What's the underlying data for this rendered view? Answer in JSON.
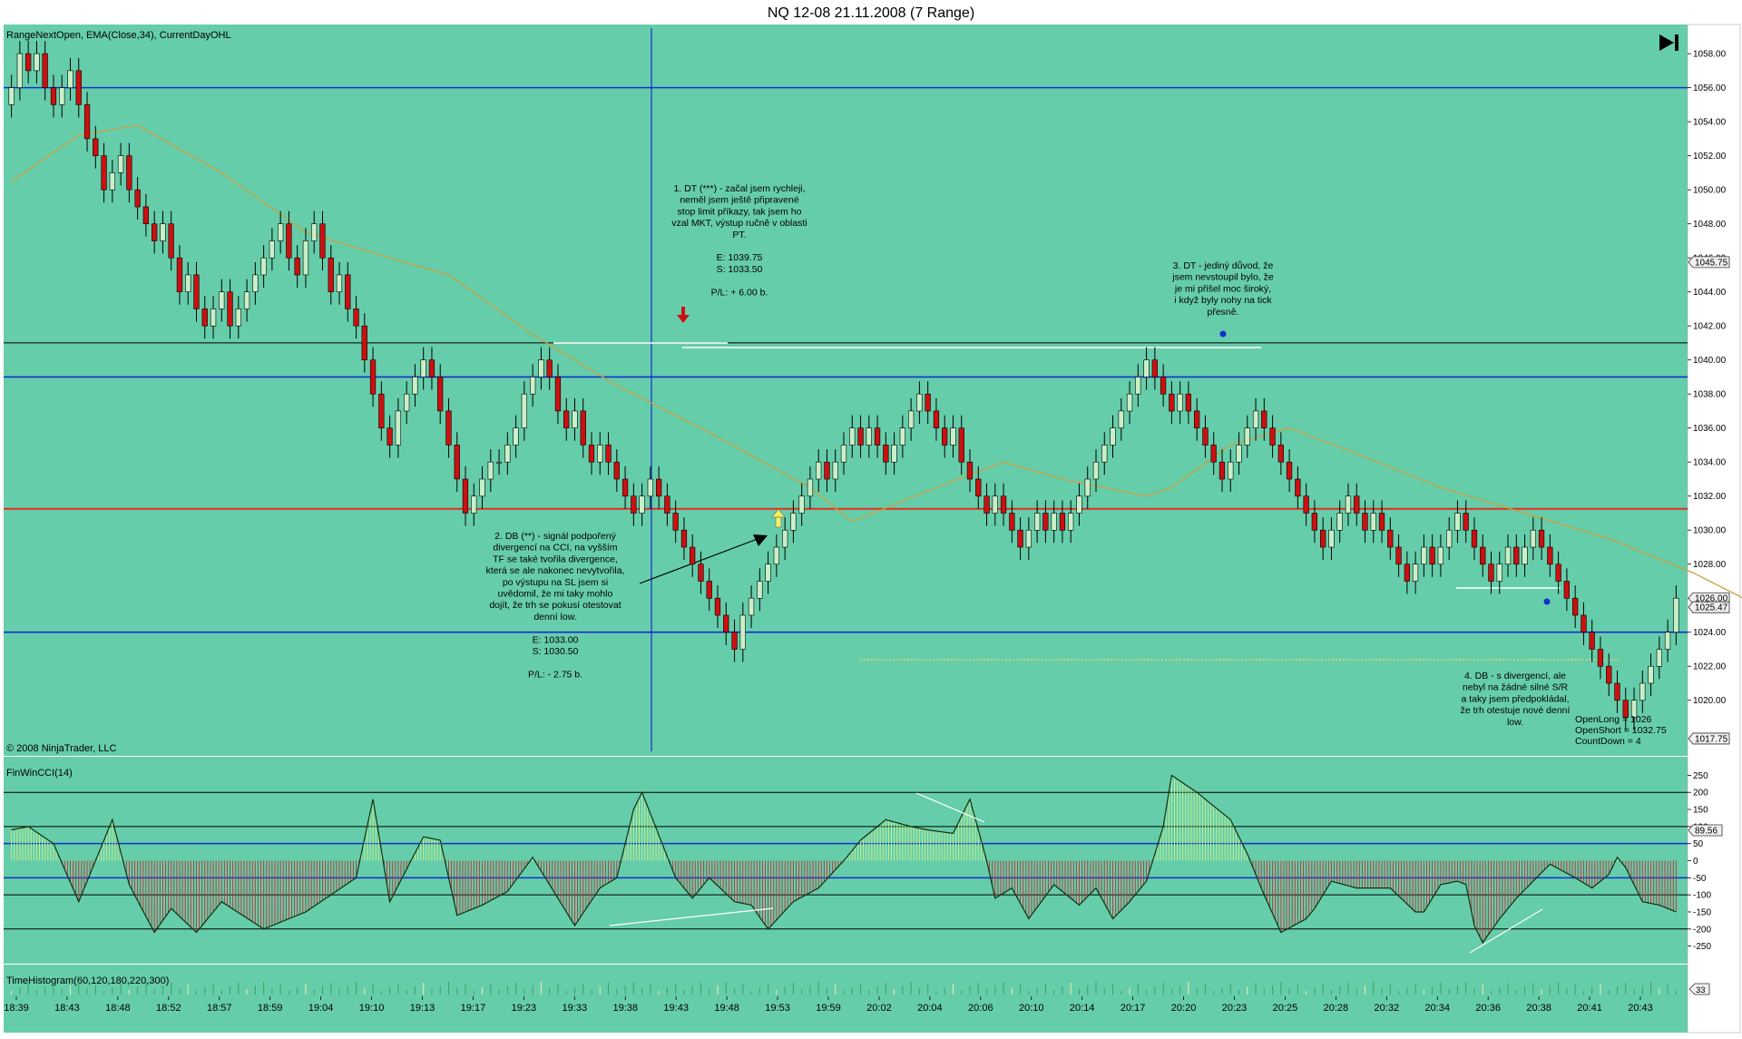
{
  "window_title": "NQ 12-08  21.11.2008 (7 Range)",
  "indicators_label": "RangeNextOpen, EMA(Close,34), CurrentDayOHL",
  "copyright": "© 2008 NinjaTrader, LLC",
  "cci_label": "FinWinCCI(14)",
  "hist_label": "TimeHistogram(60,120,180,220,300)",
  "colors": {
    "background": "#66CDAA",
    "up_candle": "#C8F0C8",
    "down_candle": "#CC1010",
    "ema": "#C8A040",
    "blue_level": "#1030D0",
    "red_level": "#E03020",
    "black_level": "#000000",
    "cci_positive": "#C0F090",
    "cci_negative": "#B04040"
  },
  "price_axis": {
    "ylim": [
      1017.0,
      1059.5
    ],
    "ticks": [
      "1058.00",
      "1056.00",
      "1054.00",
      "1052.00",
      "1050.00",
      "1048.00",
      "1046.00",
      "1044.00",
      "1042.00",
      "1040.00",
      "1038.00",
      "1036.00",
      "1034.00",
      "1032.00",
      "1030.00",
      "1028.00",
      "1026.00",
      "1024.00",
      "1022.00",
      "1020.00"
    ],
    "markers": [
      {
        "text": "1045.75",
        "value": 1045.75
      },
      {
        "text": "1026.00",
        "value": 1026.0
      },
      {
        "text": "1025.47",
        "value": 1025.47
      },
      {
        "text": "1017.75",
        "value": 1017.75
      }
    ]
  },
  "cci_axis": {
    "ylim": [
      -275,
      275
    ],
    "ticks": [
      "250",
      "200",
      "150",
      "100",
      "50",
      "0",
      "-50",
      "-100",
      "-150",
      "-200",
      "-250"
    ],
    "marker": "89.56"
  },
  "hist_marker": "33",
  "time_labels": [
    "18:39",
    "18:43",
    "18:48",
    "18:52",
    "18:57",
    "18:59",
    "19:04",
    "19:10",
    "19:13",
    "19:17",
    "19:23",
    "19:33",
    "19:38",
    "19:43",
    "19:48",
    "19:53",
    "19:59",
    "20:02",
    "20:04",
    "20:06",
    "20:10",
    "20:14",
    "20:17",
    "20:20",
    "20:23",
    "20:25",
    "20:28",
    "20:32",
    "20:34",
    "20:36",
    "20:38",
    "20:41",
    "20:43"
  ],
  "annotations": {
    "note1": [
      "1. DT (***) - začal jsem rychleji,",
      "neměl jsem ještě připravené",
      "stop limit příkazy, tak jsem ho",
      "vzal MKT, výstup ručně v oblasti",
      "PT.",
      "",
      "E: 1039.75",
      "S: 1033.50",
      "",
      "P/L: + 6.00 b."
    ],
    "note2": [
      "2. DB (**) - signál podpořený",
      "divergencí na CCI, na vyšším",
      "TF se také tvořila divergence,",
      "která se ale nakonec nevytvořila,",
      "po výstupu na SL jsem si",
      "uvědomil, že mi taky mohlo",
      "dojít, že trh se pokusí otestovat",
      "denní low.",
      "",
      "E: 1033.00",
      "S: 1030.50",
      "",
      "P/L: - 2.75 b."
    ],
    "note3": [
      "3. DT - jediný důvod, že",
      "jsem nevstoupil bylo, že",
      "je mi přišel moc široký,",
      "i když byly nohy na tick",
      "přesně."
    ],
    "note4": [
      "4. DB - s divergencí, ale",
      "nebyl na žádné silné S/R",
      "a taky jsem předpokládal,",
      "že trh otestuje nové denní",
      "low."
    ],
    "stats": [
      "OpenLong = 1026",
      "OpenShort = 1032.75",
      "CountDown = 4"
    ]
  },
  "chart_data": [
    {
      "type": "candlestick",
      "title": "NQ 12-08  21.11.2008 (7 Range)",
      "ylim": [
        1017.0,
        1059.5
      ],
      "levels": {
        "blue": [
          1056.0,
          1039.0,
          1024.0
        ],
        "red": 1031.25,
        "black": 1041.0
      },
      "closes": [
        1056,
        1058,
        1057,
        1058,
        1056,
        1055,
        1056,
        1057,
        1055,
        1053,
        1052,
        1050,
        1051,
        1052,
        1050,
        1049,
        1048,
        1047,
        1048,
        1046,
        1044,
        1045,
        1043,
        1042,
        1043,
        1044,
        1042,
        1043,
        1044,
        1045,
        1046,
        1047,
        1048,
        1046,
        1045,
        1047,
        1048,
        1046,
        1044,
        1045,
        1043,
        1042,
        1040,
        1038,
        1036,
        1035,
        1037,
        1038,
        1039,
        1040,
        1039,
        1037,
        1035,
        1033,
        1031,
        1032,
        1033,
        1034,
        1034,
        1035,
        1036,
        1038,
        1039,
        1040,
        1039,
        1037,
        1036,
        1037,
        1035,
        1034,
        1035,
        1034,
        1033,
        1032,
        1031,
        1032,
        1033,
        1032,
        1031,
        1030,
        1029,
        1028,
        1027,
        1026,
        1025,
        1024,
        1023,
        1025,
        1026,
        1027,
        1028,
        1029,
        1030,
        1031,
        1032,
        1033,
        1034,
        1033,
        1034,
        1035,
        1036,
        1035,
        1036,
        1035,
        1034,
        1035,
        1036,
        1037,
        1038,
        1037,
        1036,
        1035,
        1036,
        1034,
        1033,
        1032,
        1031,
        1032,
        1031,
        1030,
        1029,
        1030,
        1031,
        1030,
        1031,
        1030,
        1031,
        1032,
        1033,
        1034,
        1035,
        1036,
        1037,
        1038,
        1039,
        1040,
        1039,
        1038,
        1037,
        1038,
        1037,
        1036,
        1035,
        1034,
        1033,
        1034,
        1035,
        1036,
        1037,
        1036,
        1035,
        1034,
        1033,
        1032,
        1031,
        1030,
        1029,
        1030,
        1031,
        1032,
        1031,
        1030,
        1031,
        1030,
        1029,
        1028,
        1027,
        1028,
        1029,
        1028,
        1029,
        1030,
        1031,
        1030,
        1029,
        1028,
        1027,
        1028,
        1029,
        1028,
        1029,
        1030,
        1029,
        1028,
        1027,
        1026,
        1025,
        1024,
        1023,
        1022,
        1021,
        1020,
        1019,
        1020,
        1021,
        1022,
        1023,
        1024,
        1026
      ],
      "ema34_points": [
        [
          0,
          1050.5
        ],
        [
          8,
          1053.2
        ],
        [
          15,
          1053.8
        ],
        [
          25,
          1051.0
        ],
        [
          35,
          1047.5
        ],
        [
          45,
          1046.0
        ],
        [
          52,
          1045.0
        ],
        [
          62,
          1041.5
        ],
        [
          72,
          1038.5
        ],
        [
          82,
          1036.0
        ],
        [
          95,
          1032.5
        ],
        [
          100,
          1030.5
        ],
        [
          110,
          1032.5
        ],
        [
          118,
          1034.0
        ],
        [
          125,
          1033.0
        ],
        [
          135,
          1032.0
        ],
        [
          138,
          1032.5
        ],
        [
          145,
          1035.0
        ],
        [
          152,
          1036.0
        ],
        [
          160,
          1034.5
        ],
        [
          170,
          1032.5
        ],
        [
          180,
          1031.0
        ],
        [
          190,
          1029.5
        ],
        [
          200,
          1027.5
        ],
        [
          208,
          1025.5
        ]
      ]
    },
    {
      "type": "bar",
      "title": "FinWinCCI(14)",
      "ylim": [
        -275,
        275
      ],
      "reference_lines": [
        200,
        100,
        50,
        -50,
        -100,
        -200
      ],
      "keyframes": [
        [
          0,
          90
        ],
        [
          2,
          100
        ],
        [
          5,
          50
        ],
        [
          8,
          -120
        ],
        [
          12,
          120
        ],
        [
          14,
          -70
        ],
        [
          17,
          -210
        ],
        [
          19,
          -140
        ],
        [
          22,
          -210
        ],
        [
          25,
          -120
        ],
        [
          30,
          -200
        ],
        [
          35,
          -150
        ],
        [
          38,
          -100
        ],
        [
          41,
          -50
        ],
        [
          43,
          180
        ],
        [
          45,
          -120
        ],
        [
          49,
          70
        ],
        [
          51,
          60
        ],
        [
          53,
          -160
        ],
        [
          56,
          -130
        ],
        [
          59,
          -90
        ],
        [
          62,
          10
        ],
        [
          64,
          -70
        ],
        [
          67,
          -190
        ],
        [
          70,
          -80
        ],
        [
          72,
          -50
        ],
        [
          74,
          150
        ],
        [
          75,
          200
        ],
        [
          79,
          -50
        ],
        [
          81,
          -110
        ],
        [
          83,
          -50
        ],
        [
          86,
          -120
        ],
        [
          88,
          -130
        ],
        [
          90,
          -200
        ],
        [
          93,
          -120
        ],
        [
          96,
          -80
        ],
        [
          99,
          0
        ],
        [
          101,
          60
        ],
        [
          104,
          120
        ],
        [
          107,
          100
        ],
        [
          109,
          90
        ],
        [
          112,
          80
        ],
        [
          114,
          180
        ],
        [
          116,
          0
        ],
        [
          117,
          -110
        ],
        [
          119,
          -80
        ],
        [
          121,
          -170
        ],
        [
          124,
          -70
        ],
        [
          127,
          -130
        ],
        [
          129,
          -80
        ],
        [
          131,
          -170
        ],
        [
          133,
          -120
        ],
        [
          135,
          -60
        ],
        [
          137,
          100
        ],
        [
          138,
          250
        ],
        [
          141,
          200
        ],
        [
          145,
          120
        ],
        [
          147,
          20
        ],
        [
          149,
          -100
        ],
        [
          151,
          -210
        ],
        [
          154,
          -170
        ],
        [
          155,
          -140
        ],
        [
          157,
          -60
        ],
        [
          160,
          -80
        ],
        [
          164,
          -80
        ],
        [
          167,
          -150
        ],
        [
          168,
          -150
        ],
        [
          170,
          -70
        ],
        [
          172,
          -60
        ],
        [
          173,
          -70
        ],
        [
          174,
          -190
        ],
        [
          175,
          -240
        ],
        [
          177,
          -170
        ],
        [
          179,
          -110
        ],
        [
          181,
          -60
        ],
        [
          183,
          -10
        ],
        [
          186,
          -50
        ],
        [
          188,
          -80
        ],
        [
          190,
          -40
        ],
        [
          191,
          10
        ],
        [
          192,
          -20
        ],
        [
          194,
          -120
        ],
        [
          196,
          -130
        ],
        [
          198,
          -150
        ],
        [
          200,
          -110
        ],
        [
          202,
          -80
        ],
        [
          205,
          -40
        ],
        [
          207,
          10
        ],
        [
          208,
          89
        ]
      ]
    }
  ]
}
